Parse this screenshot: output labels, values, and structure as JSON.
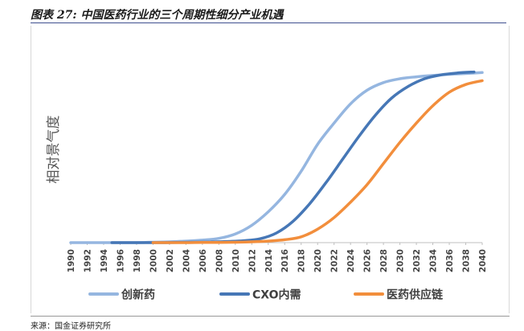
{
  "header": {
    "title": "图表 27: 中国医药行业的三个周期性细分产业机遇"
  },
  "footer": {
    "source": "来源：国金证券研究所"
  },
  "colors": {
    "innovation": "#95b6e0",
    "cxo": "#4677b6",
    "supply": "#f28e3c",
    "axis": "#bfbfbf",
    "title_rule": "#3f4f8f"
  },
  "chart_data": {
    "type": "line",
    "title": "",
    "xlabel": "",
    "ylabel": "相对景气度",
    "xlim": [
      1990,
      2040
    ],
    "ylim": [
      0,
      100
    ],
    "x_ticks": [
      1990,
      1992,
      1994,
      1996,
      1998,
      2000,
      2002,
      2004,
      2006,
      2008,
      2010,
      2012,
      2014,
      2016,
      2018,
      2020,
      2022,
      2024,
      2026,
      2028,
      2030,
      2032,
      2034,
      2036,
      2038,
      2040
    ],
    "legend_position": "bottom",
    "series": [
      {
        "name": "创新药",
        "color": "#95b6e0",
        "x": [
          1990,
          1992,
          1994,
          1996,
          1998,
          2000,
          2002,
          2004,
          2006,
          2008,
          2010,
          2012,
          2014,
          2016,
          2018,
          2020,
          2022,
          2024,
          2026,
          2028,
          2030,
          2032,
          2034,
          2036,
          2038,
          2040
        ],
        "values": [
          0,
          0,
          0,
          0,
          0,
          0.2,
          0.4,
          0.8,
          1.3,
          2.2,
          4.5,
          9,
          16,
          25,
          37,
          51,
          62,
          72,
          79,
          83,
          85,
          86,
          86.7,
          87.3,
          87.7,
          88.2
        ]
      },
      {
        "name": "CXO内需",
        "color": "#4677b6",
        "x": [
          1995,
          1997,
          1999,
          2001,
          2003,
          2005,
          2007,
          2009,
          2011,
          2013,
          2015,
          2017,
          2019,
          2021,
          2023,
          2025,
          2027,
          2029,
          2031,
          2033,
          2035,
          2037,
          2039
        ],
        "values": [
          0,
          0,
          0,
          0,
          0.1,
          0.2,
          0.3,
          0.6,
          1.0,
          2.0,
          5.0,
          11,
          20,
          31,
          43,
          55,
          66,
          75,
          81,
          85,
          87,
          88,
          88.5
        ]
      },
      {
        "name": "医药供应链",
        "color": "#f28e3c",
        "x": [
          2000,
          2002,
          2004,
          2006,
          2008,
          2010,
          2012,
          2014,
          2016,
          2018,
          2020,
          2022,
          2024,
          2026,
          2028,
          2030,
          2032,
          2034,
          2036,
          2038,
          2040
        ],
        "values": [
          0,
          0,
          0,
          0.1,
          0.1,
          0.2,
          0.4,
          0.8,
          1.5,
          3,
          7,
          13,
          21,
          30,
          41,
          52,
          62,
          71,
          78,
          82,
          84
        ]
      }
    ]
  }
}
